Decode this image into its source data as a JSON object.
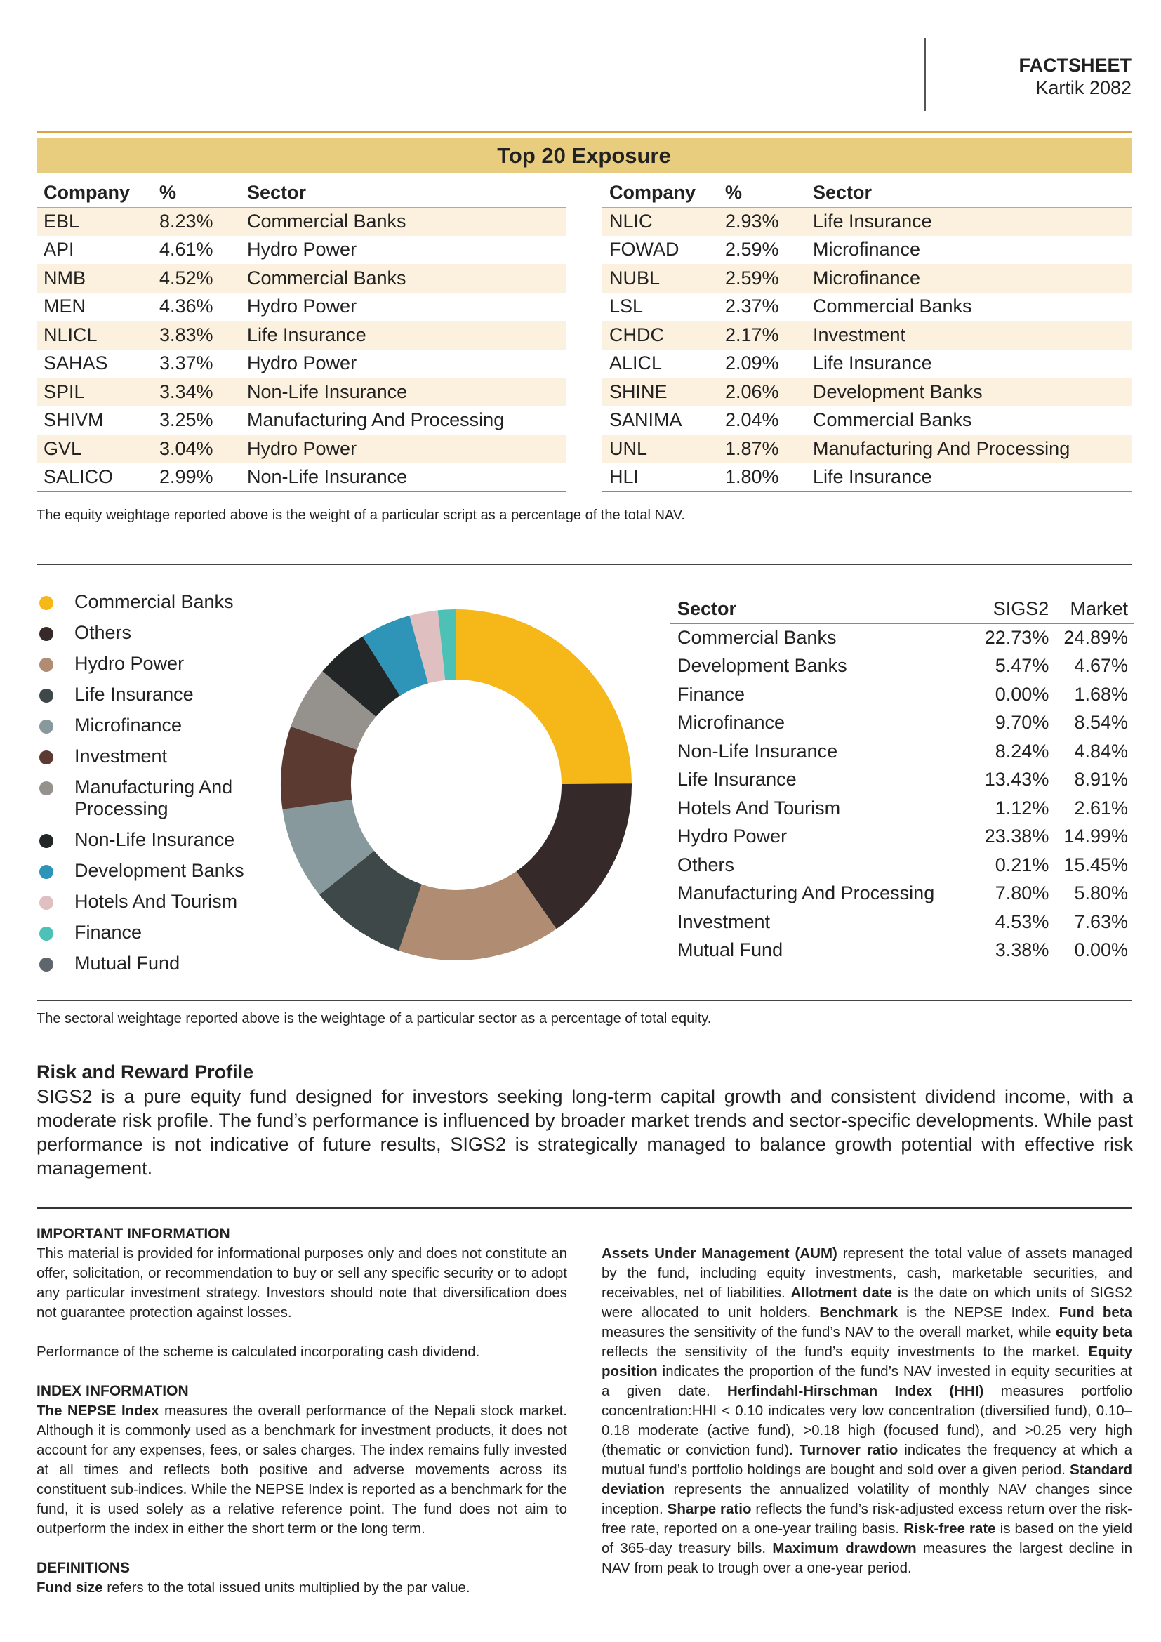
{
  "header": {
    "title": "FACTSHEET",
    "subtitle": "Kartik 2082"
  },
  "exposure": {
    "title": "Top 20 Exposure",
    "columns": [
      "Company",
      "%",
      "Sector"
    ],
    "left": [
      [
        "EBL",
        "8.23%",
        "Commercial Banks"
      ],
      [
        "API",
        "4.61%",
        "Hydro Power"
      ],
      [
        "NMB",
        "4.52%",
        "Commercial Banks"
      ],
      [
        "MEN",
        "4.36%",
        "Hydro Power"
      ],
      [
        "NLICL",
        "3.83%",
        "Life Insurance"
      ],
      [
        "SAHAS",
        "3.37%",
        "Hydro Power"
      ],
      [
        "SPIL",
        "3.34%",
        "Non-Life Insurance"
      ],
      [
        "SHIVM",
        "3.25%",
        "Manufacturing And Processing"
      ],
      [
        "GVL",
        "3.04%",
        "Hydro Power"
      ],
      [
        "SALICO",
        "2.99%",
        "Non-Life Insurance"
      ]
    ],
    "right": [
      [
        "NLIC",
        "2.93%",
        "Life Insurance"
      ],
      [
        "FOWAD",
        "2.59%",
        "Microfinance"
      ],
      [
        "NUBL",
        "2.59%",
        "Microfinance"
      ],
      [
        "LSL",
        "2.37%",
        "Commercial Banks"
      ],
      [
        "CHDC",
        "2.17%",
        "Investment"
      ],
      [
        "ALICL",
        "2.09%",
        "Life Insurance"
      ],
      [
        "SHINE",
        "2.06%",
        "Development Banks"
      ],
      [
        "SANIMA",
        "2.04%",
        "Commercial Banks"
      ],
      [
        "UNL",
        "1.87%",
        "Manufacturing And Processing"
      ],
      [
        "HLI",
        "1.80%",
        "Life Insurance"
      ]
    ],
    "note": "The equity weightage reported above is the weight of a particular script as a percentage of the total NAV."
  },
  "chart_data": {
    "type": "pie",
    "variant": "donut",
    "title": "",
    "legend_position": "left",
    "categories": [
      "Commercial Banks",
      "Others",
      "Hydro Power",
      "Life Insurance",
      "Microfinance",
      "Investment",
      "Manufacturing And Processing",
      "Non-Life Insurance",
      "Development Banks",
      "Hotels And Tourism",
      "Finance",
      "Mutual Fund"
    ],
    "values": [
      24.89,
      15.45,
      14.99,
      8.91,
      8.54,
      7.63,
      5.8,
      4.84,
      4.67,
      2.61,
      1.68,
      0.0
    ],
    "colors": [
      "#f6b719",
      "#352929",
      "#b08d72",
      "#3f4849",
      "#87999d",
      "#5b3a31",
      "#95918c",
      "#222626",
      "#2f95b8",
      "#dfbfc0",
      "#4dc1b6",
      "#5f656c"
    ]
  },
  "sectors": {
    "columns": [
      "Sector",
      "SIGS2",
      "Market"
    ],
    "rows": [
      [
        "Commercial Banks",
        "22.73%",
        "24.89%"
      ],
      [
        "Development Banks",
        "5.47%",
        "4.67%"
      ],
      [
        "Finance",
        "0.00%",
        "1.68%"
      ],
      [
        "Microfinance",
        "9.70%",
        "8.54%"
      ],
      [
        "Non-Life Insurance",
        "8.24%",
        "4.84%"
      ],
      [
        "Life Insurance",
        "13.43%",
        "8.91%"
      ],
      [
        "Hotels And Tourism",
        "1.12%",
        "2.61%"
      ],
      [
        "Hydro Power",
        "23.38%",
        "14.99%"
      ],
      [
        "Others",
        "0.21%",
        "15.45%"
      ],
      [
        "Manufacturing And Processing",
        "7.80%",
        "5.80%"
      ],
      [
        "Investment",
        "4.53%",
        "7.63%"
      ],
      [
        "Mutual Fund",
        "3.38%",
        "0.00%"
      ]
    ],
    "note": "The sectoral weightage reported above is the weightage of a particular sector as a percentage of total equity."
  },
  "risk": {
    "heading": "Risk and Reward Profile",
    "text": "SIGS2 is a pure equity fund designed for investors seeking long-term capital growth and consistent dividend income, with a moderate risk profile. The fund’s performance is influenced by broader market trends and sector-specific developments. While past performance is not indicative of future results, SIGS2 is strategically managed to balance growth potential with effective risk management."
  },
  "info": {
    "important_heading": "IMPORTANT INFORMATION",
    "important_text": "This material is provided for informational purposes only and does not constitute an offer, solicitation, or recommendation to buy or sell any specific security or to adopt any particular investment strategy. Investors should note that diversification does not guarantee protection against losses.",
    "performance_text": "Performance of the scheme is calculated incorporating cash dividend.",
    "index_heading": "INDEX INFORMATION",
    "index_bold": "The NEPSE Index",
    "index_text": " measures the overall performance of the Nepali stock market. Although it is commonly used as a benchmark for investment products, it does not account for any expenses, fees, or sales charges. The index remains fully invested at all times and reflects both positive and adverse movements across its constituent sub-indices. While the NEPSE Index is reported as a benchmark for the fund, it is used solely as a relative reference point. The fund does not aim to outperform the index in either the short term or the long term.",
    "definitions_heading": "DEFINITIONS",
    "definitions": [
      {
        "b": "Fund size",
        "t": " refers to the total issued units multiplied by the par value. "
      },
      {
        "b": "Assets Under Management (AUM)",
        "t": " represent the total value of assets managed by the fund, including equity investments, cash, marketable securities, and receivables, net of liabilities. "
      },
      {
        "b": "Allotment date",
        "t": " is the date on which units of SIGS2 were allocated to unit holders. "
      },
      {
        "b": "Benchmark",
        "t": " is the NEPSE Index. "
      },
      {
        "b": "Fund beta",
        "t": " measures the sensitivity of the fund’s NAV to the overall market, while "
      },
      {
        "b": "equity beta",
        "t": " reflects the sensitivity of the fund’s equity investments to the market. "
      },
      {
        "b": "Equity position",
        "t": " indicates the proportion of the fund’s NAV invested in equity securities at a given date. "
      },
      {
        "b": "Herfindahl-Hirschman Index (HHI)",
        "t": " measures portfolio concentration:HHI < 0.10 indicates very low concentration (diversified fund), 0.10–0.18 moderate (active fund), >0.18 high (focused fund), and >0.25 very high (thematic or conviction fund). "
      },
      {
        "b": "Turnover ratio",
        "t": " indicates the frequency at which a mutual fund’s portfolio holdings are bought and sold over a given period. "
      },
      {
        "b": "Standard deviation",
        "t": " represents the annualized volatility of monthly NAV changes since inception. "
      },
      {
        "b": "Sharpe ratio",
        "t": " reflects the fund’s risk-adjusted excess return over the risk-free rate, reported on a one-year trailing basis. "
      },
      {
        "b": "Risk-free rate",
        "t": " is based on the yield of 365-day treasury bills. "
      },
      {
        "b": "Maximum drawdown",
        "t": " measures the largest decline in NAV from peak to trough over a one-year period."
      }
    ]
  }
}
